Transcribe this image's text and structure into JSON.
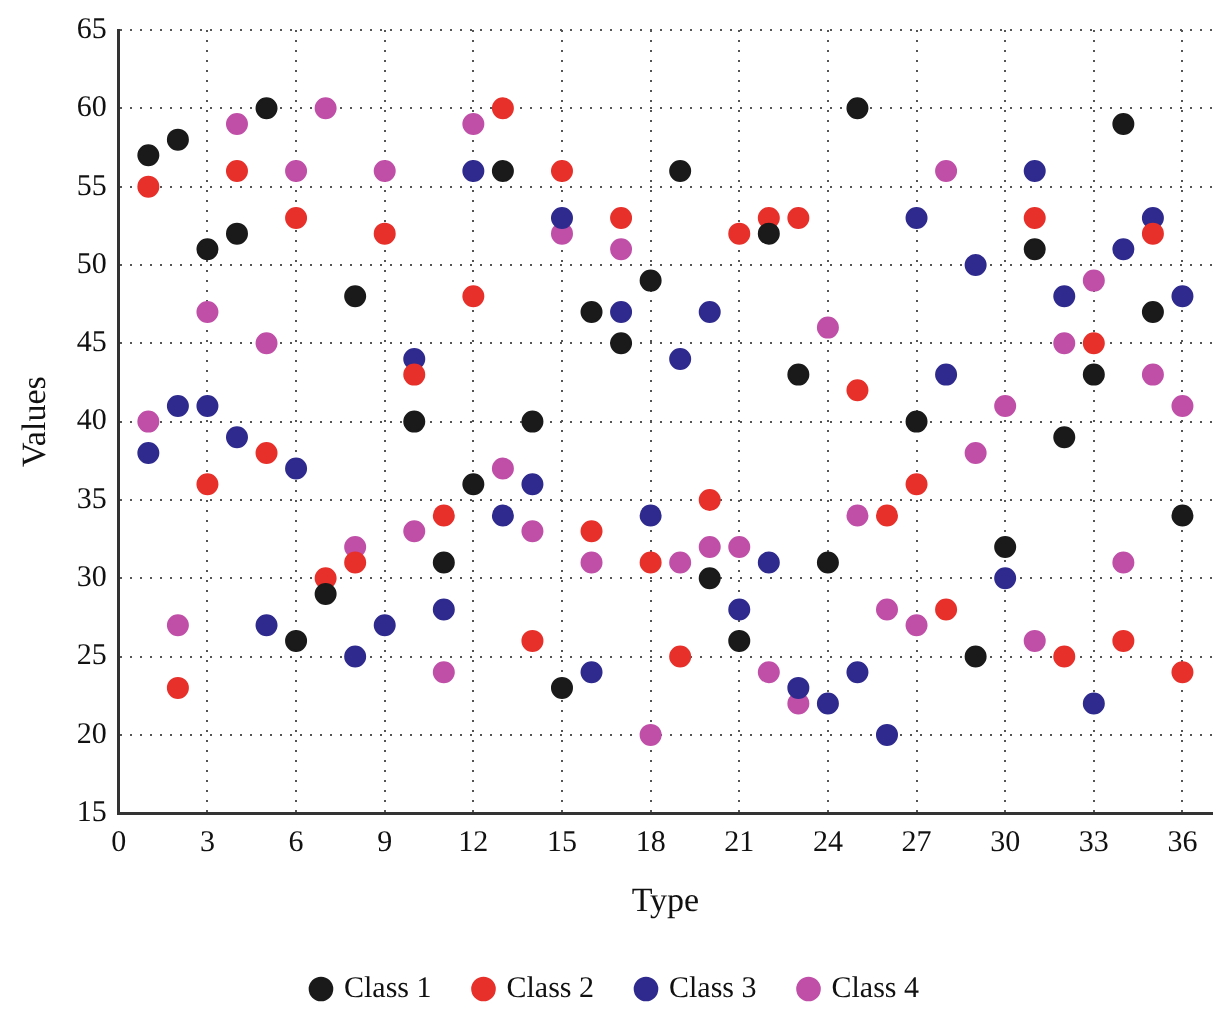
{
  "chart_data": {
    "type": "scatter",
    "xlabel": "Type",
    "ylabel": "Values",
    "x": [
      1,
      2,
      3,
      4,
      5,
      6,
      7,
      8,
      9,
      10,
      11,
      12,
      13,
      14,
      15,
      16,
      17,
      18,
      19,
      20,
      21,
      22,
      23,
      24,
      25,
      26,
      27,
      28,
      29,
      30,
      31,
      32,
      33,
      34,
      35,
      36
    ],
    "series": [
      {
        "name": "Class 1",
        "color": "#1a1a1a",
        "values": [
          57,
          58,
          51,
          52,
          60,
          26,
          29,
          48,
          null,
          40,
          31,
          36,
          56,
          40,
          23,
          47,
          45,
          49,
          56,
          30,
          26,
          52,
          43,
          31,
          60,
          null,
          40,
          null,
          25,
          32,
          51,
          39,
          43,
          59,
          47,
          34
        ]
      },
      {
        "name": "Class 2",
        "color": "#e8302a",
        "values": [
          55,
          23,
          36,
          56,
          38,
          53,
          30,
          31,
          52,
          43,
          34,
          48,
          60,
          26,
          56,
          33,
          53,
          31,
          25,
          35,
          52,
          53,
          53,
          null,
          42,
          34,
          36,
          28,
          null,
          null,
          53,
          25,
          45,
          26,
          52,
          24
        ]
      },
      {
        "name": "Class 3",
        "color": "#2e2a8e",
        "values": [
          38,
          41,
          41,
          39,
          27,
          37,
          null,
          25,
          27,
          44,
          28,
          56,
          34,
          36,
          53,
          24,
          47,
          34,
          44,
          47,
          28,
          31,
          23,
          22,
          24,
          20,
          53,
          43,
          50,
          30,
          56,
          48,
          22,
          51,
          53,
          48
        ]
      },
      {
        "name": "Class 4",
        "color": "#c04fa8",
        "values": [
          40,
          27,
          47,
          59,
          45,
          56,
          60,
          32,
          56,
          33,
          24,
          59,
          37,
          33,
          52,
          31,
          51,
          20,
          31,
          32,
          32,
          24,
          22,
          46,
          34,
          28,
          27,
          56,
          38,
          41,
          26,
          45,
          49,
          31,
          43,
          41
        ]
      }
    ],
    "xlim": [
      0,
      37
    ],
    "xticks": [
      0,
      3,
      6,
      9,
      12,
      15,
      18,
      21,
      24,
      27,
      30,
      33,
      36
    ],
    "ylim": [
      15,
      65
    ],
    "yticks": [
      15,
      20,
      25,
      30,
      35,
      40,
      45,
      50,
      55,
      60,
      65
    ],
    "grid": true,
    "legend": "bottom",
    "marker": "circle"
  }
}
